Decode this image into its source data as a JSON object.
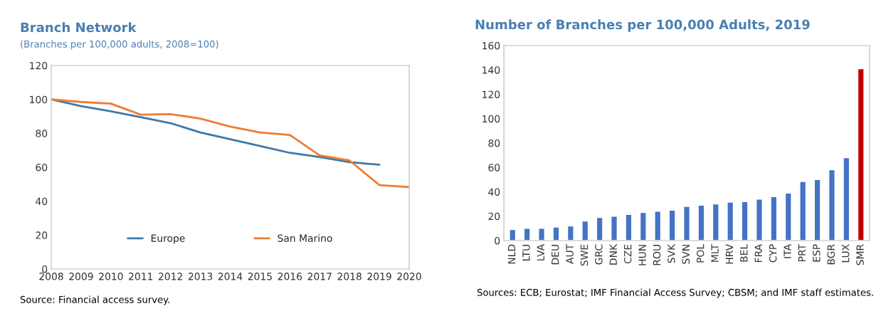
{
  "chart_data": [
    {
      "type": "line",
      "title": "Branch Network",
      "subtitle": "(Branches per 100,000 adults, 2008=100)",
      "x": [
        2008,
        2009,
        2010,
        2011,
        2012,
        2013,
        2014,
        2015,
        2016,
        2017,
        2018,
        2019,
        2020
      ],
      "series": [
        {
          "name": "Europe",
          "color": "#3e78aa",
          "values": [
            100,
            96,
            93,
            89.5,
            86,
            80.5,
            76.5,
            72.5,
            68.5,
            66,
            63,
            61.5,
            null
          ]
        },
        {
          "name": "San Marino",
          "color": "#ed7d31",
          "values": [
            100,
            98.5,
            97.5,
            91,
            91.3,
            88.7,
            84,
            80.5,
            79,
            67,
            64,
            49.5,
            48.3
          ]
        }
      ],
      "xlim": [
        2008,
        2020
      ],
      "xticks": [
        2008,
        2009,
        2010,
        2011,
        2012,
        2013,
        2014,
        2015,
        2016,
        2017,
        2018,
        2019,
        2020
      ],
      "ylim": [
        0,
        120
      ],
      "yticks": [
        0,
        20,
        40,
        60,
        80,
        100,
        120
      ],
      "grid": false,
      "legend": "bottom",
      "marker": "none",
      "line_style": "solid",
      "annotations": [
        "Source: Financial access survey."
      ]
    },
    {
      "type": "bar",
      "title": "Number of Branches per 100,000 Adults, 2019",
      "categories": [
        "NLD",
        "LTU",
        "LVA",
        "DEU",
        "AUT",
        "SWE",
        "GRC",
        "DNK",
        "CZE",
        "HUN",
        "ROU",
        "SVK",
        "SVN",
        "POL",
        "MLT",
        "HRV",
        "BEL",
        "FRA",
        "CYP",
        "ITA",
        "PRT",
        "ESP",
        "BGR",
        "LUX",
        "SMR"
      ],
      "values": [
        9,
        10,
        10,
        11,
        12,
        16,
        19,
        20,
        21.5,
        23,
        24,
        25,
        28,
        29,
        30,
        31.5,
        32,
        34,
        36,
        39,
        48.5,
        50,
        58,
        68,
        141
      ],
      "colors": [
        "#4472c4",
        "#4472c4",
        "#4472c4",
        "#4472c4",
        "#4472c4",
        "#4472c4",
        "#4472c4",
        "#4472c4",
        "#4472c4",
        "#4472c4",
        "#4472c4",
        "#4472c4",
        "#4472c4",
        "#4472c4",
        "#4472c4",
        "#4472c4",
        "#4472c4",
        "#4472c4",
        "#4472c4",
        "#4472c4",
        "#4472c4",
        "#4472c4",
        "#4472c4",
        "#4472c4",
        "#c00000"
      ],
      "ylim": [
        0,
        160
      ],
      "yticks": [
        0,
        20,
        40,
        60,
        80,
        100,
        120,
        140,
        160
      ],
      "grid": false,
      "legend": false,
      "annotations": [
        "Sources: ECB; Eurostat; IMF Financial Access Survey; CBSM; and IMF staff estimates."
      ]
    }
  ]
}
